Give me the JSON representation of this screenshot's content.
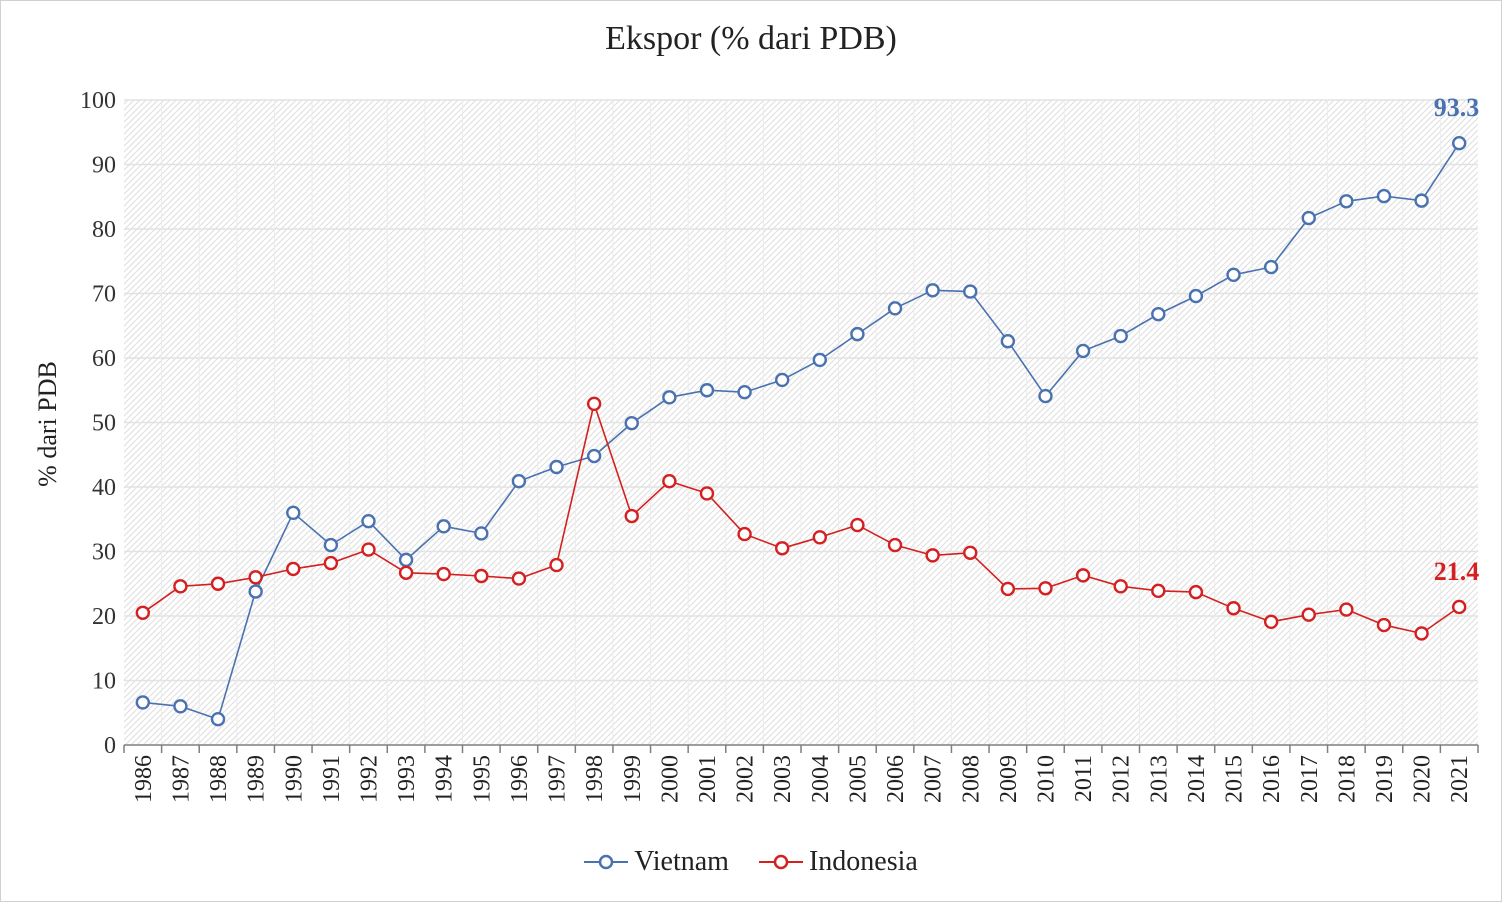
{
  "chart_data": {
    "type": "line",
    "title": "Ekspor (% dari PDB)",
    "xlabel": "",
    "ylabel": "% dari PDB",
    "ylim": [
      0,
      100
    ],
    "yticks": [
      0,
      10,
      20,
      30,
      40,
      50,
      60,
      70,
      80,
      90,
      100
    ],
    "grid": true,
    "legend_position": "bottom",
    "categories": [
      "1986",
      "1987",
      "1988",
      "1989",
      "1990",
      "1991",
      "1992",
      "1993",
      "1994",
      "1995",
      "1996",
      "1997",
      "1998",
      "1999",
      "2000",
      "2001",
      "2002",
      "2003",
      "2004",
      "2005",
      "2006",
      "2007",
      "2008",
      "2009",
      "2010",
      "2011",
      "2012",
      "2013",
      "2014",
      "2015",
      "2016",
      "2017",
      "2018",
      "2019",
      "2020",
      "2021"
    ],
    "series": [
      {
        "name": "Vietnam",
        "color": "#4a72b0",
        "values": [
          6.6,
          6.0,
          4.0,
          23.8,
          36.0,
          31.0,
          34.7,
          28.7,
          33.9,
          32.8,
          40.9,
          43.1,
          44.8,
          49.9,
          53.9,
          55.0,
          54.7,
          56.6,
          59.7,
          63.7,
          67.7,
          70.5,
          70.3,
          62.6,
          54.1,
          61.1,
          63.4,
          66.8,
          69.6,
          72.9,
          74.1,
          81.7,
          84.3,
          85.1,
          84.4,
          93.3
        ],
        "end_label": "93.3"
      },
      {
        "name": "Indonesia",
        "color": "#d42020",
        "values": [
          20.5,
          24.6,
          25.0,
          26.0,
          27.3,
          28.2,
          30.3,
          26.7,
          26.5,
          26.2,
          25.8,
          27.9,
          52.9,
          35.5,
          40.9,
          39.0,
          32.7,
          30.5,
          32.2,
          34.1,
          31.0,
          29.4,
          29.8,
          24.2,
          24.3,
          26.3,
          24.6,
          23.9,
          23.7,
          21.2,
          19.1,
          20.2,
          21.0,
          18.6,
          17.3,
          21.4
        ],
        "end_label": "21.4"
      }
    ]
  }
}
